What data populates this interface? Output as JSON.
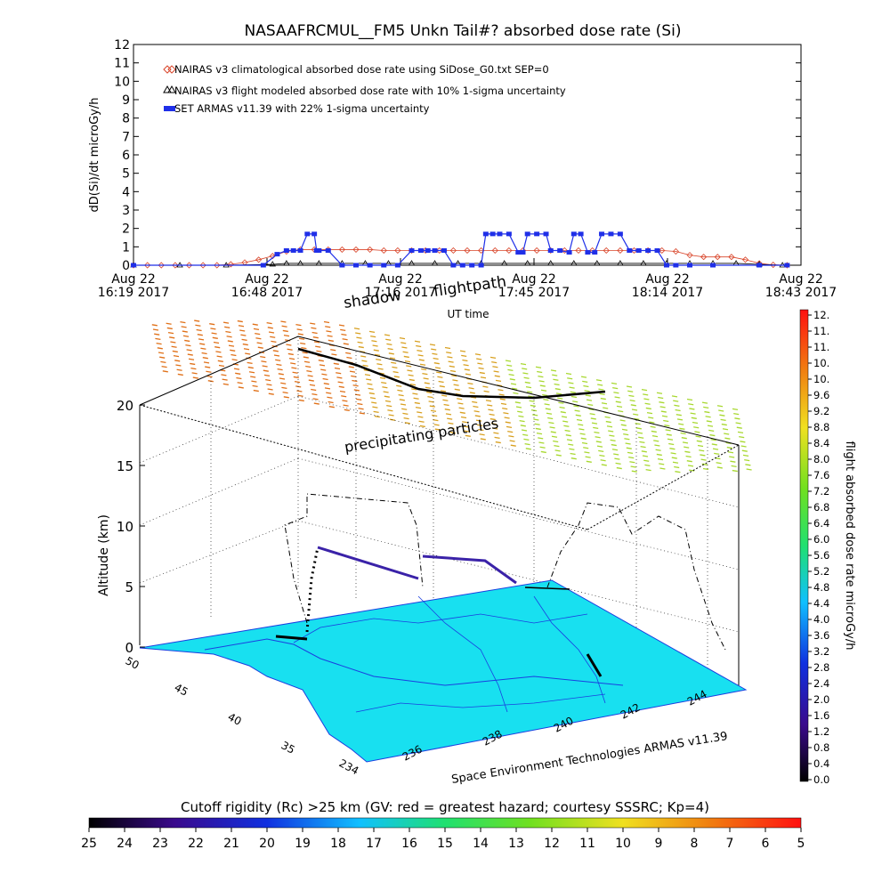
{
  "title": "NASAAFRCMUL__FM5 Unkn Tail#? absorbed dose rate (Si)",
  "colors": {
    "nairas_clim": "#d9452a",
    "nairas_flight": "#000000",
    "armas": "#1f2fe8",
    "map": "#18e0f0",
    "map_line": "#1a3fe0"
  },
  "chart_data": [
    {
      "type": "line",
      "title": "NASAAFRCMUL__FM5 Unkn Tail#? absorbed dose rate (Si)",
      "xlabel": "UT time",
      "ylabel": "dD(Si)/dt microGy/h",
      "ylim": [
        0,
        12
      ],
      "yticks": [
        "0",
        "1",
        "2",
        "3",
        "4",
        "5",
        "6",
        "7",
        "8",
        "9",
        "10",
        "11",
        "12"
      ],
      "xticks": [
        {
          "line1": "Aug 22",
          "line2": "16:19 2017"
        },
        {
          "line1": "Aug 22",
          "line2": "16:48 2017"
        },
        {
          "line1": "Aug 22",
          "line2": "17:16 2017"
        },
        {
          "line1": "Aug 22",
          "line2": "17:45 2017"
        },
        {
          "line1": "Aug 22",
          "line2": "18:14 2017"
        },
        {
          "line1": "Aug 22",
          "line2": "18:43 2017"
        }
      ],
      "x_units": "minutes after 2017-08-22 16:19 UT",
      "legend_placement": "top-left",
      "series": [
        {
          "name": "NAIRAS v3 climatological absorbed dose rate using SiDose_G0.txt SEP=0",
          "marker": "diamond",
          "x": [
            0,
            3,
            6,
            9,
            12,
            15,
            18,
            21,
            24,
            27,
            30,
            33,
            36,
            39,
            42,
            45,
            48,
            51,
            54,
            57,
            60,
            63,
            66,
            69,
            72,
            75,
            78,
            81,
            84,
            87,
            90,
            93,
            96,
            99,
            102,
            105,
            108,
            111,
            114,
            117,
            120,
            123,
            126,
            129,
            132,
            135,
            138,
            141
          ],
          "values": [
            0,
            0,
            0,
            0,
            0,
            0,
            0,
            0.05,
            0.15,
            0.3,
            0.5,
            0.75,
            0.85,
            0.85,
            0.85,
            0.85,
            0.85,
            0.85,
            0.8,
            0.8,
            0.8,
            0.8,
            0.8,
            0.8,
            0.8,
            0.8,
            0.8,
            0.8,
            0.8,
            0.8,
            0.8,
            0.8,
            0.8,
            0.8,
            0.8,
            0.8,
            0.8,
            0.8,
            0.8,
            0.75,
            0.55,
            0.45,
            0.45,
            0.45,
            0.3,
            0.1,
            0.02,
            0
          ]
        },
        {
          "name": "NAIRAS v3 flight modeled absorbed dose rate with 10% 1-sigma uncertainty",
          "marker": "triangle",
          "x": [
            0,
            10,
            20,
            30,
            33,
            36,
            40,
            45,
            50,
            55,
            60,
            65,
            70,
            75,
            80,
            85,
            90,
            95,
            100,
            105,
            110,
            115,
            120,
            125,
            130,
            135,
            140
          ],
          "values": [
            0,
            0,
            0,
            0.05,
            0.1,
            0.1,
            0.1,
            0.1,
            0.1,
            0.1,
            0.1,
            0.1,
            0.1,
            0.1,
            0.1,
            0.1,
            0.1,
            0.1,
            0.1,
            0.1,
            0.1,
            0.1,
            0.1,
            0.1,
            0.1,
            0.05,
            0
          ]
        },
        {
          "name": "SET ARMAS v11.39 with 22% 1-sigma uncertainty",
          "marker": "square",
          "x": [
            0,
            28,
            31,
            33,
            34.5,
            36,
            37.5,
            39,
            39.5,
            40,
            42,
            45,
            48,
            51,
            54,
            57,
            60,
            62,
            63.5,
            65,
            67,
            69,
            71,
            73,
            75,
            76,
            77.5,
            79,
            81,
            83,
            84,
            85,
            87,
            89,
            90,
            92,
            94,
            95,
            96.5,
            98,
            99.5,
            101,
            103,
            105,
            107,
            109,
            111,
            113,
            115,
            117,
            120,
            125,
            135,
            141
          ],
          "values": [
            0,
            0,
            0.6,
            0.8,
            0.8,
            0.8,
            1.7,
            1.7,
            0.8,
            0.8,
            0.8,
            0,
            0,
            0,
            0,
            0,
            0.8,
            0.8,
            0.8,
            0.8,
            0.8,
            0,
            0,
            0,
            0,
            1.7,
            1.7,
            1.7,
            1.7,
            0.7,
            0.7,
            1.7,
            1.7,
            1.7,
            0.8,
            0.8,
            0.7,
            1.7,
            1.7,
            0.7,
            0.7,
            1.7,
            1.7,
            1.7,
            0.8,
            0.8,
            0.8,
            0.8,
            0,
            0,
            0,
            0,
            0,
            0
          ]
        }
      ]
    },
    {
      "type": "scatter",
      "title": "",
      "zlabel": "Altitude (km)",
      "zticks": [
        "0",
        "5",
        "10",
        "15",
        "20"
      ],
      "lat_ticks": [
        "50",
        "45",
        "40",
        "35",
        "234"
      ],
      "lon_ticks": [
        "236",
        "238",
        "240",
        "242",
        "244"
      ],
      "colorbar_label": "flight absorbed dose rate microGy/h",
      "colorbar_ticks": [
        "0.0",
        "0.4",
        "0.8",
        "1.2",
        "1.6",
        "2.0",
        "2.4",
        "2.8",
        "3.2",
        "3.6",
        "4.0",
        "4.4",
        "4.8",
        "5.2",
        "5.6",
        "6.0",
        "6.4",
        "6.8",
        "7.2",
        "7.6",
        "8.0",
        "8.4",
        "8.8",
        "9.2",
        "9.6",
        "10.",
        "10.",
        "11.",
        "11.",
        "12."
      ],
      "annotations": [
        "shadow",
        "flightpath",
        "precipitating particles"
      ],
      "credit": "Space Environment Technologies ARMAS v11.39",
      "bottom_colorbar_label": "Cutoff rigidity (Rc) >25 km (GV: red = greatest hazard; courtesy SSSRC; Kp=4)",
      "bottom_colorbar_ticks": [
        "25",
        "24",
        "23",
        "22",
        "21",
        "20",
        "19",
        "18",
        "17",
        "16",
        "15",
        "14",
        "13",
        "12",
        "11",
        "10",
        "9",
        "8",
        "7",
        "6",
        "5"
      ]
    }
  ]
}
